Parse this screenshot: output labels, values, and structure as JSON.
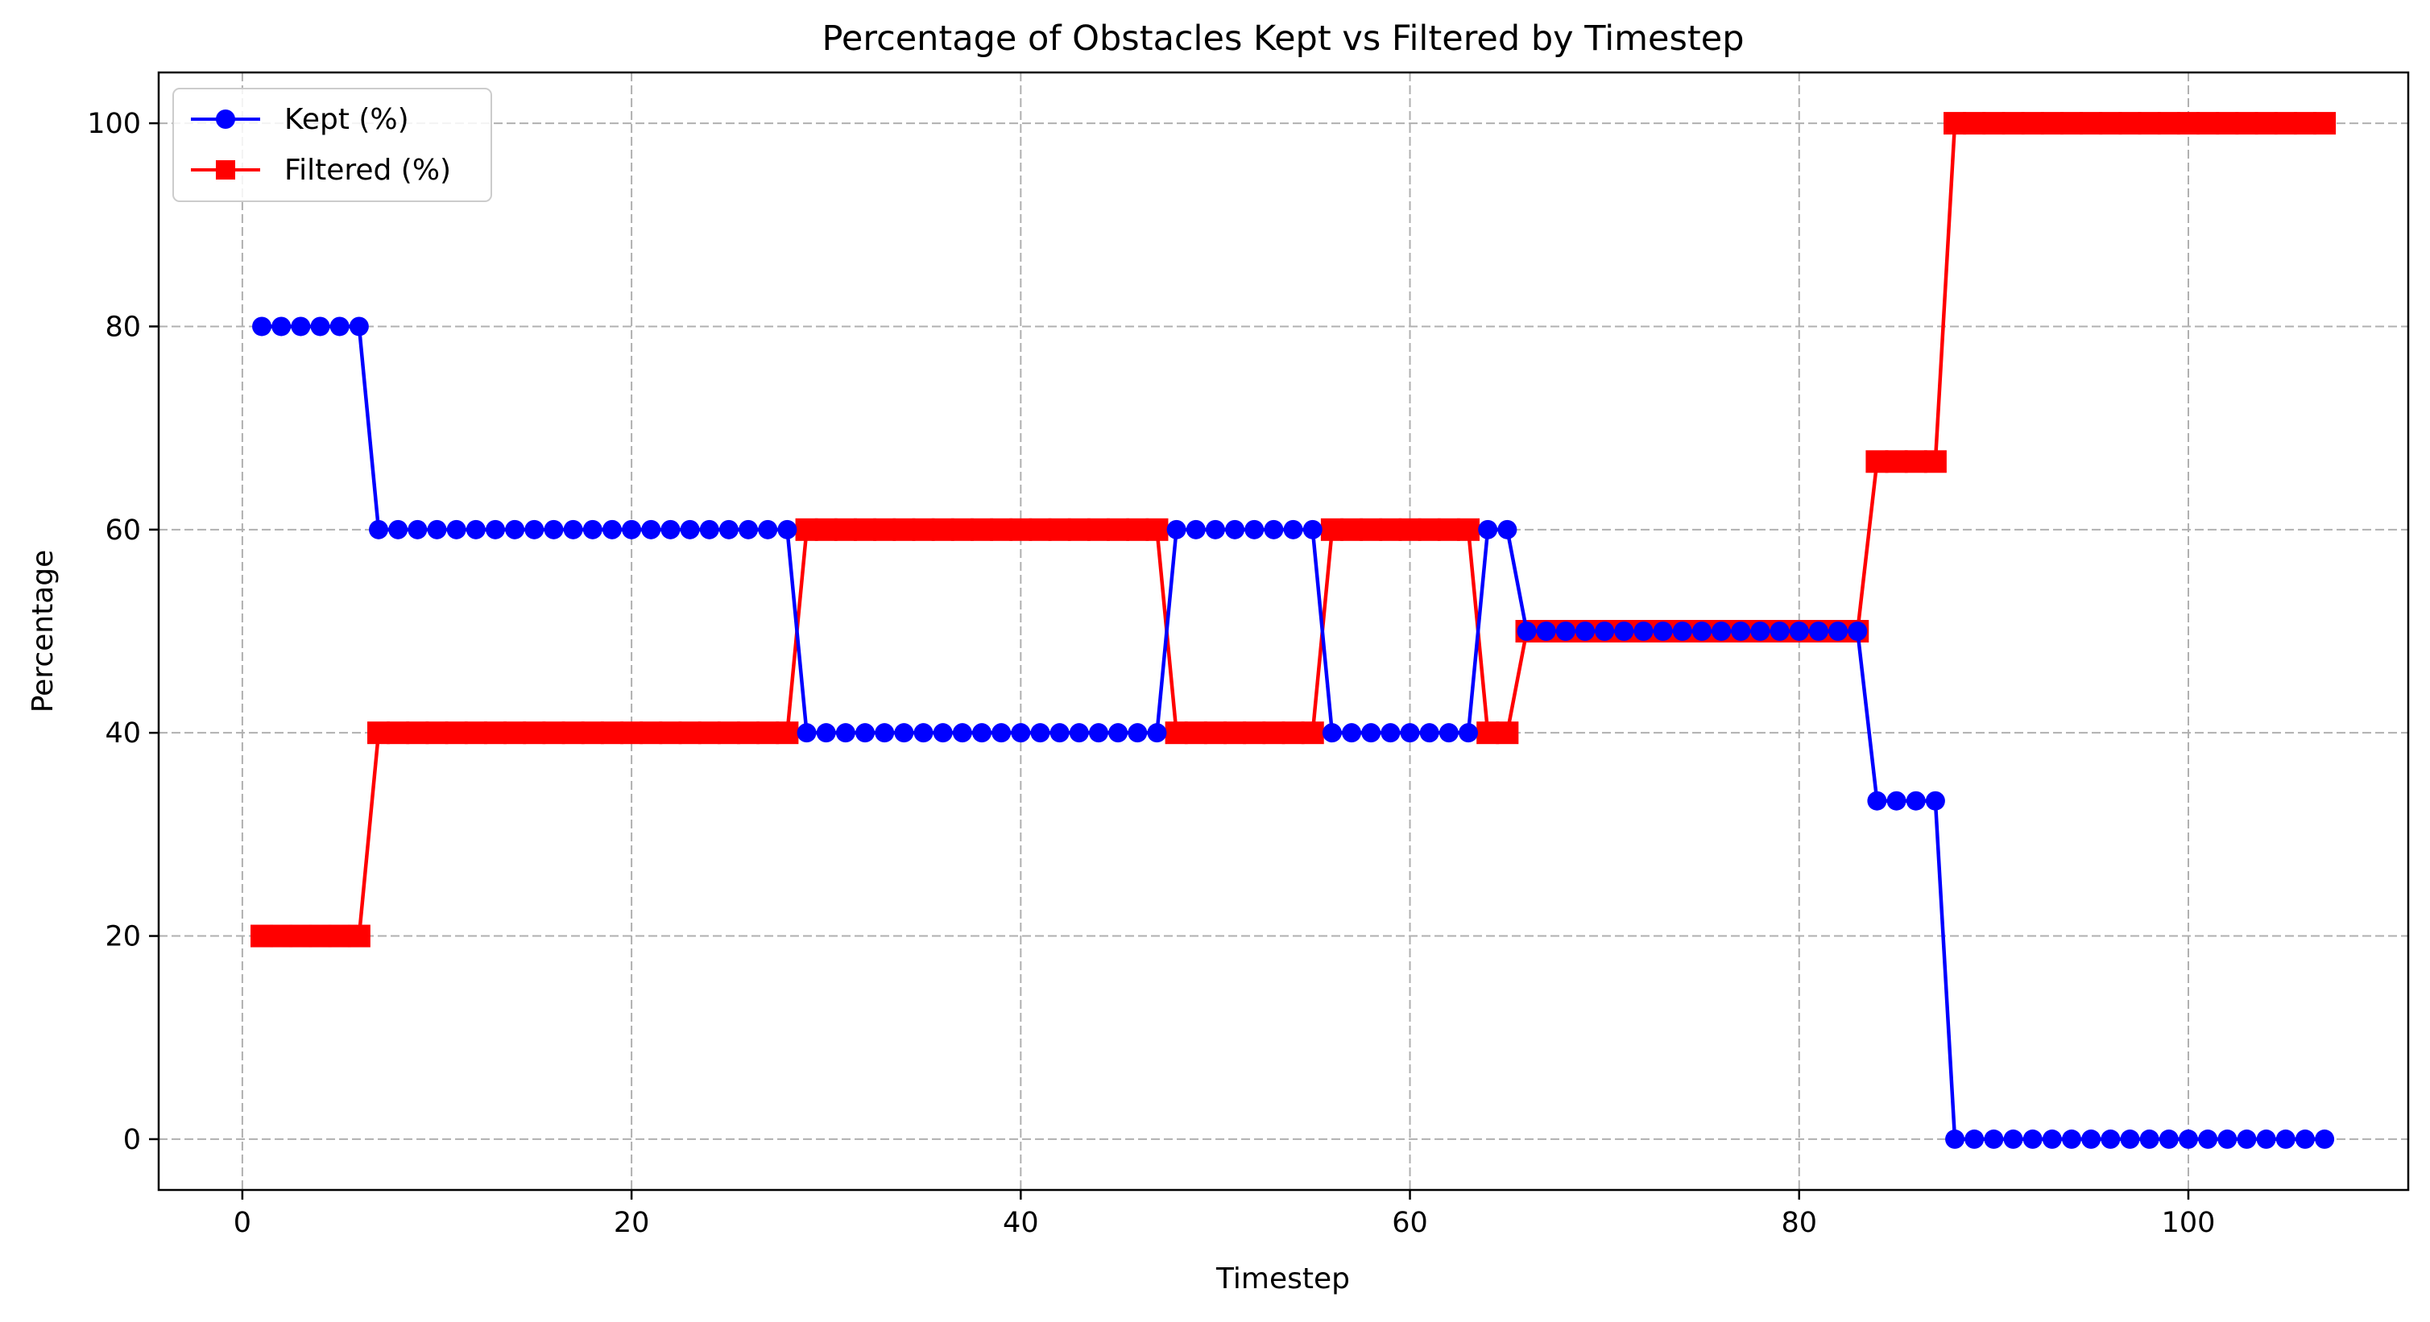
{
  "colors": {
    "kept": "#0000ff",
    "filtered": "#ff0000",
    "grid": "#b0b0b0",
    "axis": "#000000"
  },
  "chart_data": {
    "type": "line",
    "title": "Percentage of Obstacles Kept vs Filtered by Timestep",
    "xlabel": "Timestep",
    "ylabel": "Percentage",
    "xlim": [
      -4.3,
      111.3
    ],
    "ylim": [
      -5,
      105
    ],
    "xticks": [
      0,
      20,
      40,
      60,
      80,
      100
    ],
    "yticks": [
      0,
      20,
      40,
      60,
      80,
      100
    ],
    "grid": true,
    "grid_style": "dashed",
    "legend": "top-left",
    "x": [
      1,
      2,
      3,
      4,
      5,
      6,
      7,
      8,
      9,
      10,
      11,
      12,
      13,
      14,
      15,
      16,
      17,
      18,
      19,
      20,
      21,
      22,
      23,
      24,
      25,
      26,
      27,
      28,
      29,
      30,
      31,
      32,
      33,
      34,
      35,
      36,
      37,
      38,
      39,
      40,
      41,
      42,
      43,
      44,
      45,
      46,
      47,
      48,
      49,
      50,
      51,
      52,
      53,
      54,
      55,
      56,
      57,
      58,
      59,
      60,
      61,
      62,
      63,
      64,
      65,
      66,
      67,
      68,
      69,
      70,
      71,
      72,
      73,
      74,
      75,
      76,
      77,
      78,
      79,
      80,
      81,
      82,
      83,
      84,
      85,
      86,
      87,
      88,
      89,
      90,
      91,
      92,
      93,
      94,
      95,
      96,
      97,
      98,
      99,
      100,
      101,
      102,
      103,
      104,
      105,
      106,
      107
    ],
    "series": [
      {
        "name": "Kept (%)",
        "marker": "circle",
        "values": [
          80,
          80,
          80,
          80,
          80,
          80,
          60,
          60,
          60,
          60,
          60,
          60,
          60,
          60,
          60,
          60,
          60,
          60,
          60,
          60,
          60,
          60,
          60,
          60,
          60,
          60,
          60,
          60,
          40,
          40,
          40,
          40,
          40,
          40,
          40,
          40,
          40,
          40,
          40,
          40,
          40,
          40,
          40,
          40,
          40,
          40,
          40,
          60,
          60,
          60,
          60,
          60,
          60,
          60,
          60,
          40,
          40,
          40,
          40,
          40,
          40,
          40,
          40,
          60,
          60,
          50,
          50,
          50,
          50,
          50,
          50,
          50,
          50,
          50,
          50,
          50,
          50,
          50,
          50,
          50,
          50,
          50,
          50,
          33.3,
          33.3,
          33.3,
          33.3,
          0,
          0,
          0,
          0,
          0,
          0,
          0,
          0,
          0,
          0,
          0,
          0,
          0,
          0,
          0,
          0,
          0,
          0,
          0,
          0
        ]
      },
      {
        "name": "Filtered (%)",
        "marker": "square",
        "values": [
          20,
          20,
          20,
          20,
          20,
          20,
          40,
          40,
          40,
          40,
          40,
          40,
          40,
          40,
          40,
          40,
          40,
          40,
          40,
          40,
          40,
          40,
          40,
          40,
          40,
          40,
          40,
          40,
          60,
          60,
          60,
          60,
          60,
          60,
          60,
          60,
          60,
          60,
          60,
          60,
          60,
          60,
          60,
          60,
          60,
          60,
          60,
          40,
          40,
          40,
          40,
          40,
          40,
          40,
          40,
          60,
          60,
          60,
          60,
          60,
          60,
          60,
          60,
          40,
          40,
          50,
          50,
          50,
          50,
          50,
          50,
          50,
          50,
          50,
          50,
          50,
          50,
          50,
          50,
          50,
          50,
          50,
          50,
          66.7,
          66.7,
          66.7,
          66.7,
          100,
          100,
          100,
          100,
          100,
          100,
          100,
          100,
          100,
          100,
          100,
          100,
          100,
          100,
          100,
          100,
          100,
          100,
          100,
          100
        ]
      }
    ]
  }
}
